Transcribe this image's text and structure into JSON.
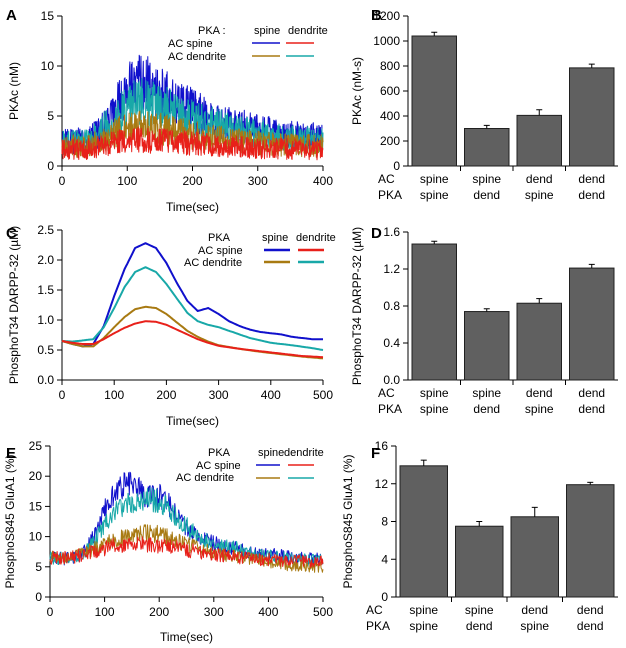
{
  "colors": {
    "ac_spine_pka_spine": "#1010cc",
    "ac_spine_pka_dendrite": "#e8201a",
    "ac_dendrite_pka_spine": "#a87a12",
    "ac_dendrite_pka_dendrite": "#18a8a8",
    "bar_fill": "#606060"
  },
  "panels": {
    "A": {
      "letter": "A"
    },
    "B": {
      "letter": "B"
    },
    "C": {
      "letter": "C"
    },
    "D": {
      "letter": "D"
    },
    "E": {
      "letter": "E"
    },
    "F": {
      "letter": "F"
    }
  },
  "legendA": {
    "title": "PKA :",
    "col1": "spine",
    "col2": "dendrite",
    "row1": "AC spine",
    "row2": "AC dendrite"
  },
  "legendC": {
    "title": "PKA",
    "col1": "spine",
    "col2": "dendrite",
    "row1": "AC spine",
    "row2": "AC dendrite"
  },
  "legendE": {
    "title": "PKA",
    "col1": "spine",
    "col2": "dendrite",
    "row1": "AC spine",
    "row2": "AC dendrite"
  },
  "bar_row_labels": {
    "ac": "AC",
    "pka": "PKA"
  },
  "chart_data": [
    {
      "id": "A",
      "type": "line",
      "title": "",
      "xlabel": "Time(sec)",
      "ylabel": "PKAc (nM)",
      "xlim": [
        0,
        400
      ],
      "ylim": [
        0,
        15
      ],
      "xticks": [
        0,
        100,
        200,
        300,
        400
      ],
      "yticks": [
        0,
        5,
        10,
        15
      ],
      "noisy": true,
      "series": [
        {
          "name": "AC spine / PKA spine",
          "x": [
            0,
            40,
            60,
            80,
            100,
            115,
            130,
            150,
            180,
            220,
            260,
            300,
            340,
            370,
            400
          ],
          "y": [
            2.5,
            2.6,
            3.5,
            5.5,
            7.5,
            8.5,
            8.3,
            7.3,
            6.2,
            5.0,
            4.2,
            3.6,
            3.2,
            3.0,
            2.9
          ]
        },
        {
          "name": "AC spine / PKA dendrite",
          "x": [
            0,
            40,
            60,
            80,
            100,
            120,
            150,
            190,
            240,
            300,
            350,
            400
          ],
          "y": [
            1.6,
            1.7,
            2.0,
            2.3,
            2.6,
            2.6,
            2.5,
            2.3,
            2.0,
            1.8,
            1.7,
            1.6
          ]
        },
        {
          "name": "AC dendrite / PKA spine",
          "x": [
            0,
            40,
            60,
            80,
            100,
            120,
            150,
            190,
            240,
            300,
            350,
            400
          ],
          "y": [
            2.0,
            2.0,
            2.5,
            3.2,
            3.8,
            4.0,
            3.7,
            3.2,
            2.7,
            2.3,
            2.1,
            2.0
          ]
        },
        {
          "name": "AC dendrite / PKA dendrite",
          "x": [
            0,
            40,
            60,
            80,
            100,
            120,
            150,
            190,
            240,
            300,
            350,
            400
          ],
          "y": [
            2.3,
            2.4,
            3.5,
            4.8,
            6.0,
            6.5,
            6.0,
            5.0,
            4.0,
            3.2,
            2.8,
            2.5
          ]
        }
      ]
    },
    {
      "id": "B",
      "type": "bar",
      "xlabel": "",
      "ylabel": "PKAc (nM-s)",
      "ylim": [
        0,
        1200
      ],
      "yticks": [
        0,
        200,
        400,
        600,
        800,
        1000,
        1200
      ],
      "categories": [
        {
          "ac": "spine",
          "pka": "spine"
        },
        {
          "ac": "spine",
          "pka": "dend"
        },
        {
          "ac": "dend",
          "pka": "spine"
        },
        {
          "ac": "dend",
          "pka": "dend"
        }
      ],
      "values": [
        1040,
        300,
        405,
        785
      ],
      "errors": [
        30,
        25,
        45,
        30
      ]
    },
    {
      "id": "C",
      "type": "line",
      "xlabel": "Time(sec)",
      "ylabel": "PhosphoT34 DARPP-32 (µM)",
      "xlim": [
        0,
        500
      ],
      "ylim": [
        0,
        2.5
      ],
      "xticks": [
        0,
        100,
        200,
        300,
        400,
        500
      ],
      "yticks": [
        0.0,
        0.5,
        1.0,
        1.5,
        2.0,
        2.5
      ],
      "noisy": false,
      "series": [
        {
          "name": "AC spine / PKA spine",
          "x": [
            0,
            20,
            40,
            60,
            80,
            100,
            120,
            140,
            160,
            180,
            200,
            220,
            240,
            260,
            280,
            300,
            320,
            340,
            360,
            380,
            400,
            420,
            440,
            460,
            480,
            500
          ],
          "y": [
            0.65,
            0.6,
            0.56,
            0.6,
            0.9,
            1.4,
            1.85,
            2.2,
            2.28,
            2.2,
            1.95,
            1.62,
            1.32,
            1.15,
            1.2,
            1.1,
            0.98,
            0.9,
            0.84,
            0.8,
            0.78,
            0.76,
            0.72,
            0.7,
            0.68,
            0.68
          ]
        },
        {
          "name": "AC spine / PKA dendrite",
          "x": [
            0,
            20,
            40,
            60,
            80,
            100,
            120,
            140,
            160,
            180,
            200,
            220,
            240,
            260,
            280,
            300,
            340,
            380,
            420,
            460,
            500
          ],
          "y": [
            0.65,
            0.62,
            0.6,
            0.6,
            0.68,
            0.78,
            0.87,
            0.94,
            0.98,
            0.97,
            0.92,
            0.84,
            0.76,
            0.68,
            0.62,
            0.57,
            0.52,
            0.48,
            0.44,
            0.4,
            0.38
          ]
        },
        {
          "name": "AC dendrite / PKA spine",
          "x": [
            0,
            20,
            40,
            60,
            80,
            100,
            120,
            140,
            160,
            180,
            200,
            220,
            240,
            260,
            280,
            300,
            340,
            380,
            420,
            460,
            500
          ],
          "y": [
            0.65,
            0.6,
            0.56,
            0.56,
            0.7,
            0.88,
            1.05,
            1.18,
            1.22,
            1.2,
            1.1,
            0.96,
            0.82,
            0.72,
            0.64,
            0.58,
            0.52,
            0.47,
            0.43,
            0.39,
            0.36
          ]
        },
        {
          "name": "AC dendrite / PKA dendrite",
          "x": [
            0,
            20,
            40,
            60,
            80,
            100,
            120,
            140,
            160,
            180,
            200,
            220,
            240,
            260,
            280,
            300,
            320,
            340,
            360,
            380,
            400,
            440,
            480,
            500
          ],
          "y": [
            0.65,
            0.64,
            0.66,
            0.68,
            0.88,
            1.2,
            1.55,
            1.8,
            1.88,
            1.8,
            1.6,
            1.36,
            1.12,
            0.98,
            0.92,
            0.88,
            0.82,
            0.76,
            0.7,
            0.66,
            0.62,
            0.58,
            0.53,
            0.5
          ]
        }
      ]
    },
    {
      "id": "D",
      "type": "bar",
      "xlabel": "",
      "ylabel": "PhosphoT34 DARPP-32 (µM)",
      "ylim": [
        0,
        1.6
      ],
      "yticks": [
        0.0,
        0.4,
        0.8,
        1.2,
        1.6
      ],
      "categories": [
        {
          "ac": "spine",
          "pka": "spine"
        },
        {
          "ac": "spine",
          "pka": "dend"
        },
        {
          "ac": "dend",
          "pka": "spine"
        },
        {
          "ac": "dend",
          "pka": "dend"
        }
      ],
      "values": [
        1.47,
        0.74,
        0.83,
        1.21
      ],
      "errors": [
        0.03,
        0.03,
        0.05,
        0.04
      ]
    },
    {
      "id": "E",
      "type": "line",
      "xlabel": "Time(sec)",
      "ylabel": "PhosphoS845 GluA1 (%)",
      "xlim": [
        0,
        500
      ],
      "ylim": [
        0,
        25
      ],
      "xticks": [
        0,
        100,
        200,
        300,
        400,
        500
      ],
      "yticks": [
        0,
        5,
        10,
        15,
        20,
        25
      ],
      "noisy": true,
      "series": [
        {
          "name": "AC spine / PKA spine",
          "x": [
            0,
            40,
            60,
            80,
            100,
            120,
            140,
            160,
            180,
            200,
            220,
            240,
            260,
            280,
            300,
            340,
            380,
            420,
            460,
            500
          ],
          "y": [
            6.5,
            6.3,
            7.0,
            10.0,
            14.5,
            17.5,
            19.0,
            18.0,
            16.5,
            17.0,
            15.0,
            12.5,
            10.5,
            9.5,
            8.8,
            8.0,
            7.2,
            6.8,
            6.5,
            6.2
          ]
        },
        {
          "name": "AC spine / PKA dendrite",
          "x": [
            0,
            40,
            80,
            120,
            160,
            200,
            240,
            280,
            320,
            380,
            440,
            500
          ],
          "y": [
            6.5,
            6.6,
            7.5,
            8.5,
            8.8,
            8.5,
            8.0,
            7.3,
            6.8,
            6.3,
            6.0,
            5.8
          ]
        },
        {
          "name": "AC dendrite / PKA spine",
          "x": [
            0,
            40,
            80,
            120,
            160,
            200,
            240,
            280,
            320,
            380,
            440,
            500
          ],
          "y": [
            6.5,
            6.5,
            8.0,
            9.5,
            10.5,
            10.5,
            9.0,
            7.8,
            7.0,
            6.0,
            5.2,
            5.0
          ]
        },
        {
          "name": "AC dendrite / PKA dendrite",
          "x": [
            0,
            40,
            60,
            80,
            100,
            120,
            140,
            160,
            180,
            200,
            220,
            240,
            260,
            280,
            300,
            340,
            380,
            420,
            460,
            500
          ],
          "y": [
            6.5,
            6.4,
            7.0,
            9.0,
            12.0,
            14.0,
            15.5,
            16.0,
            16.2,
            15.8,
            14.5,
            12.5,
            10.8,
            9.5,
            8.8,
            8.0,
            7.2,
            6.6,
            6.2,
            6.0
          ]
        }
      ]
    },
    {
      "id": "F",
      "type": "bar",
      "xlabel": "",
      "ylabel": "PhosphoS845 GluA1 (%)",
      "ylim": [
        0,
        16
      ],
      "yticks": [
        0,
        4,
        8,
        12,
        16
      ],
      "categories": [
        {
          "ac": "spine",
          "pka": "spine"
        },
        {
          "ac": "spine",
          "pka": "dend"
        },
        {
          "ac": "dend",
          "pka": "spine"
        },
        {
          "ac": "dend",
          "pka": "dend"
        }
      ],
      "values": [
        13.9,
        7.5,
        8.5,
        11.9
      ],
      "errors": [
        0.6,
        0.5,
        1.0,
        0.25
      ]
    }
  ]
}
